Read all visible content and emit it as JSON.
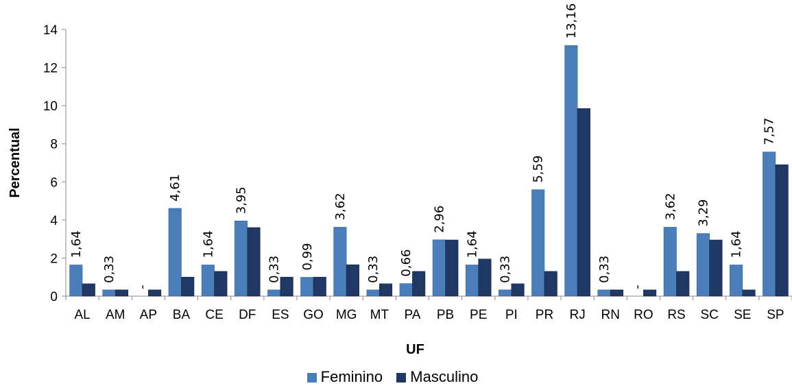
{
  "chart_data": {
    "type": "bar",
    "xlabel": "UF",
    "ylabel": "Percentual",
    "ylim": [
      0,
      14
    ],
    "yticks": [
      0,
      2,
      4,
      6,
      8,
      10,
      12,
      14
    ],
    "grid": false,
    "legend_position": "bottom",
    "categories": [
      "AL",
      "AM",
      "AP",
      "BA",
      "CE",
      "DF",
      "ES",
      "GO",
      "MG",
      "MT",
      "PA",
      "PB",
      "PE",
      "PI",
      "PR",
      "RJ",
      "RN",
      "RO",
      "RS",
      "SC",
      "SE",
      "SP"
    ],
    "series": [
      {
        "name": "Feminino",
        "color": "#4A7EBB",
        "values": [
          1.64,
          0.33,
          0,
          4.61,
          1.64,
          3.95,
          0.33,
          0.99,
          3.62,
          0.33,
          0.66,
          2.96,
          1.64,
          0.33,
          5.59,
          13.16,
          0.33,
          0,
          3.62,
          3.29,
          1.64,
          7.57
        ],
        "labels": [
          "1,64",
          "0,33",
          "-",
          "4,61",
          "1,64",
          "3,95",
          "0,33",
          "0,99",
          "3,62",
          "0,33",
          "0,66",
          "2,96",
          "1,64",
          "0,33",
          "5,59",
          "13,16",
          "0,33",
          "-",
          "3,62",
          "3,29",
          "1,64",
          "7,57"
        ]
      },
      {
        "name": "Masculino",
        "color": "#1F3864",
        "values": [
          0.65,
          0.33,
          0.33,
          1.0,
          1.3,
          3.6,
          1.0,
          1.0,
          1.65,
          0.65,
          1.3,
          2.95,
          1.95,
          0.65,
          1.3,
          9.85,
          0.33,
          0.33,
          1.3,
          2.95,
          0.33,
          6.9
        ]
      }
    ]
  }
}
